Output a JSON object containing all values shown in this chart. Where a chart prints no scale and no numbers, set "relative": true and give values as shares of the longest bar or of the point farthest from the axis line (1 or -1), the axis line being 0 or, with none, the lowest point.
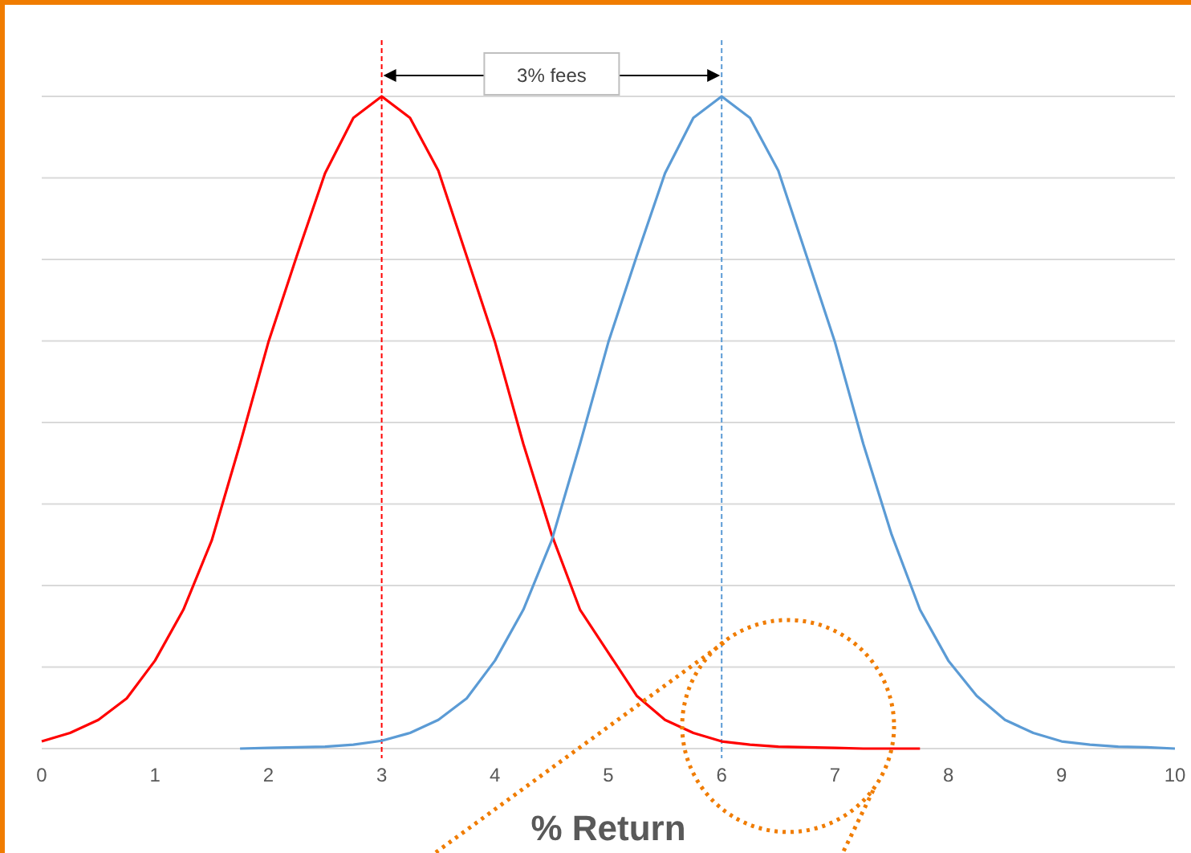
{
  "chart_data": {
    "type": "line",
    "xlabel": "% Return",
    "relative": true,
    "grid": "y",
    "xlim": [
      0,
      10
    ],
    "xticks": [
      0,
      1,
      2,
      3,
      4,
      5,
      6,
      7,
      8,
      9,
      10
    ],
    "marker": "none",
    "line_style": "solid",
    "series": [
      {
        "color": "#ff0000",
        "x": [
          0,
          0.25,
          0.5,
          0.75,
          1,
          1.25,
          1.5,
          1.75,
          2,
          2.25,
          2.5,
          2.75,
          3,
          3.25,
          3.5,
          3.75,
          4,
          4.25,
          4.5,
          4.75,
          5,
          5.25,
          5.5,
          5.75,
          6,
          6.25,
          6.5,
          6.75,
          7,
          7.25,
          7.5,
          7.75
        ],
        "values": [
          0.011,
          0.024,
          0.044,
          0.077,
          0.135,
          0.213,
          0.319,
          0.467,
          0.623,
          0.755,
          0.882,
          0.967,
          1,
          0.967,
          0.886,
          0.755,
          0.623,
          0.467,
          0.328,
          0.213,
          0.147,
          0.081,
          0.044,
          0.024,
          0.011,
          0.006,
          0.003,
          0.002,
          0.001,
          0,
          0,
          0
        ]
      },
      {
        "color": "#5b9bd5",
        "x": [
          1.75,
          2,
          2.25,
          2.5,
          2.75,
          3,
          3.25,
          3.5,
          3.75,
          4,
          4.25,
          4.5,
          4.75,
          5,
          5.25,
          5.5,
          5.75,
          6,
          6.25,
          6.5,
          6.75,
          7,
          7.25,
          7.5,
          7.75,
          8,
          8.25,
          8.5,
          8.75,
          9,
          9.25,
          9.5,
          9.75,
          10
        ],
        "values": [
          0,
          0.001,
          0.002,
          0.003,
          0.006,
          0.012,
          0.024,
          0.044,
          0.077,
          0.135,
          0.213,
          0.319,
          0.467,
          0.623,
          0.755,
          0.882,
          0.967,
          1,
          0.967,
          0.886,
          0.755,
          0.623,
          0.467,
          0.328,
          0.213,
          0.135,
          0.081,
          0.044,
          0.024,
          0.011,
          0.006,
          0.003,
          0.002,
          0
        ]
      }
    ],
    "ref_lines": [
      {
        "axis": "x",
        "value": 3,
        "color": "#ff0000",
        "line_style": "dashed"
      },
      {
        "axis": "x",
        "value": 6,
        "color": "#5b9bd5",
        "line_style": "dashed"
      }
    ],
    "annotations": [
      "3% fees"
    ]
  }
}
